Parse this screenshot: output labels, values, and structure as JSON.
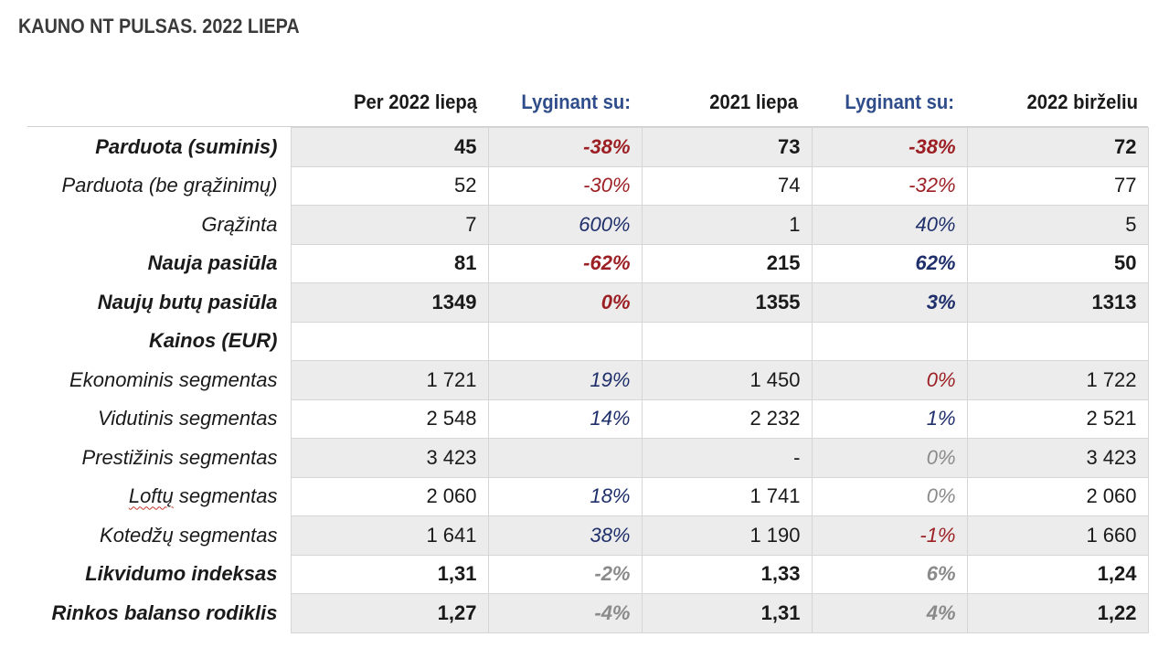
{
  "title": "KAUNO NT PULSAS. 2022 LIEPA",
  "columns": [
    "Per 2022 liepą",
    "Lyginant su:",
    "2021 liepa",
    "Lyginant su:",
    "2022 birželiu"
  ],
  "rows": [
    {
      "label": "Parduota (suminis)",
      "bold": true,
      "shade": true,
      "v1": "45",
      "p1": "-38%",
      "p1_color": "red",
      "v2": "73",
      "p2": "-38%",
      "p2_color": "red",
      "v3": "72"
    },
    {
      "label": "Parduota (be grąžinimų)",
      "bold": false,
      "shade": false,
      "v1": "52",
      "p1": "-30%",
      "p1_color": "red",
      "v2": "74",
      "p2": "-32%",
      "p2_color": "red",
      "v3": "77"
    },
    {
      "label": "Grąžinta",
      "bold": false,
      "shade": true,
      "v1": "7",
      "p1": "600%",
      "p1_color": "blue",
      "v2": "1",
      "p2": "40%",
      "p2_color": "blue",
      "v3": "5"
    },
    {
      "label": "Nauja pasiūla",
      "bold": true,
      "shade": false,
      "v1": "81",
      "p1": "-62%",
      "p1_color": "red",
      "v2": "215",
      "p2": "62%",
      "p2_color": "blue",
      "v3": "50"
    },
    {
      "label": "Naujų butų pasiūla",
      "bold": true,
      "shade": true,
      "v1": "1349",
      "p1": "0%",
      "p1_color": "red",
      "v2": "1355",
      "p2": "3%",
      "p2_color": "blue",
      "v3": "1313"
    },
    {
      "label": "Kainos (EUR)",
      "bold": true,
      "shade": false,
      "v1": "",
      "p1": "",
      "p1_color": "red",
      "v2": "",
      "p2": "",
      "p2_color": "red",
      "v3": ""
    },
    {
      "label": "Ekonominis segmentas",
      "bold": false,
      "shade": true,
      "v1": "1 721",
      "p1": "19%",
      "p1_color": "blue",
      "v2": "1 450",
      "p2": "0%",
      "p2_color": "red",
      "v3": "1 722"
    },
    {
      "label": "Vidutinis segmentas",
      "bold": false,
      "shade": false,
      "v1": "2 548",
      "p1": "14%",
      "p1_color": "blue",
      "v2": "2 232",
      "p2": "1%",
      "p2_color": "blue",
      "v3": "2 521"
    },
    {
      "label": "Prestižinis segmentas",
      "bold": false,
      "shade": true,
      "v1": "3 423",
      "p1": "",
      "p1_color": "gray",
      "v2": "-",
      "p2": "0%",
      "p2_color": "gray",
      "v3": "3 423"
    },
    {
      "label": "Loftų segmentas",
      "bold": false,
      "shade": false,
      "v1": "2 060",
      "p1": "18%",
      "p1_color": "blue",
      "v2": "1 741",
      "p2": "0%",
      "p2_color": "gray",
      "v3": "2 060"
    },
    {
      "label": "Kotedžų segmentas",
      "bold": false,
      "shade": true,
      "v1": "1 641",
      "p1": "38%",
      "p1_color": "blue",
      "v2": "1 190",
      "p2": "-1%",
      "p2_color": "red",
      "v3": "1 660"
    },
    {
      "label": "Likvidumo indeksas",
      "bold": true,
      "shade": false,
      "v1": "1,31",
      "p1": "-2%",
      "p1_color": "gray",
      "v2": "1,33",
      "p2": "6%",
      "p2_color": "gray",
      "v3": "1,24"
    },
    {
      "label": "Rinkos balanso rodiklis",
      "bold": true,
      "shade": true,
      "v1": "1,27",
      "p1": "-4%",
      "p1_color": "gray",
      "v2": "1,31",
      "p2": "4%",
      "p2_color": "gray",
      "v3": "1,22"
    }
  ],
  "colors": {
    "red": "#9c1f24",
    "blue": "#1f2f6b",
    "gray": "#8a8a8a",
    "header_blue": "#2f4d8a",
    "shade": "#ececec"
  }
}
